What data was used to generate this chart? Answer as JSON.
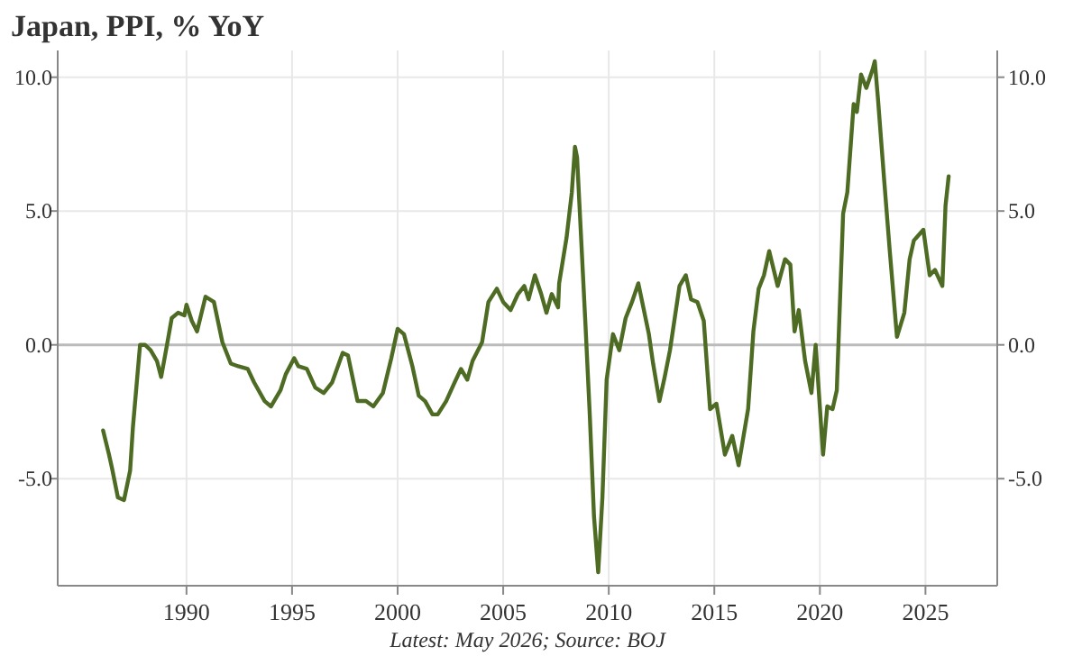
{
  "chart_data": {
    "type": "line",
    "title": "Japan, PPI, % YoY",
    "annotations": [
      "Latest: May 2026; Source: BOJ"
    ],
    "x": [
      1986.05,
      1986.33,
      1986.47,
      1986.75,
      1987.04,
      1987.33,
      1987.46,
      1987.8,
      1988.04,
      1988.3,
      1988.6,
      1988.8,
      1989.1,
      1989.3,
      1989.6,
      1989.9,
      1990.0,
      1990.25,
      1990.5,
      1990.9,
      1991.3,
      1991.7,
      1992.1,
      1992.45,
      1992.9,
      1993.2,
      1993.7,
      1994.0,
      1994.45,
      1994.7,
      1995.1,
      1995.3,
      1995.7,
      1996.1,
      1996.5,
      1996.9,
      1997.4,
      1997.65,
      1998.1,
      1998.5,
      1998.85,
      1999.3,
      1999.7,
      2000.0,
      2000.3,
      2000.7,
      2001.0,
      2001.3,
      2001.65,
      2001.9,
      2002.3,
      2002.7,
      2003.0,
      2003.3,
      2003.55,
      2004.0,
      2004.3,
      2004.7,
      2005.0,
      2005.35,
      2005.7,
      2006.0,
      2006.2,
      2006.5,
      2006.8,
      2007.05,
      2007.3,
      2007.6,
      2007.65,
      2008.0,
      2008.25,
      2008.4,
      2008.5,
      2008.9,
      2009.1,
      2009.3,
      2009.5,
      2009.7,
      2009.9,
      2010.2,
      2010.5,
      2010.8,
      2011.1,
      2011.4,
      2011.9,
      2012.1,
      2012.4,
      2012.65,
      2012.9,
      2013.35,
      2013.65,
      2013.9,
      2014.2,
      2014.5,
      2014.8,
      2015.1,
      2015.5,
      2015.85,
      2016.15,
      2016.6,
      2016.85,
      2017.1,
      2017.35,
      2017.6,
      2018.0,
      2018.35,
      2018.6,
      2018.8,
      2019.0,
      2019.3,
      2019.6,
      2019.8,
      2020.15,
      2020.35,
      2020.6,
      2020.8,
      2021.1,
      2021.3,
      2021.6,
      2021.75,
      2021.95,
      2022.2,
      2022.5,
      2022.6,
      2022.75,
      2023.05,
      2023.3,
      2023.65,
      2024.0,
      2024.25,
      2024.45,
      2024.9,
      2025.2,
      2025.45,
      2025.8,
      2025.95,
      2026.1
    ],
    "series": [
      {
        "color": "#4d6b22",
        "values": [
          -3.2,
          -4.1,
          -4.6,
          -5.7,
          -5.8,
          -4.7,
          -3.1,
          0,
          0,
          -0.2,
          -0.6,
          -1.2,
          0.1,
          1.0,
          1.2,
          1.1,
          1.5,
          0.9,
          0.5,
          1.8,
          1.6,
          0.1,
          -0.7,
          -0.8,
          -0.9,
          -1.4,
          -2.1,
          -2.3,
          -1.7,
          -1.1,
          -0.5,
          -0.8,
          -0.9,
          -1.6,
          -1.8,
          -1.4,
          -0.3,
          -0.4,
          -2.1,
          -2.1,
          -2.3,
          -1.8,
          -0.5,
          0.6,
          0.4,
          -0.8,
          -1.9,
          -2.1,
          -2.6,
          -2.6,
          -2.1,
          -1.4,
          -0.9,
          -1.3,
          -0.6,
          0.1,
          1.6,
          2.1,
          1.6,
          1.3,
          1.9,
          2.2,
          1.7,
          2.6,
          1.9,
          1.2,
          1.9,
          1.4,
          2.3,
          4.0,
          5.7,
          7.4,
          7.0,
          0.7,
          -2.6,
          -6.4,
          -8.5,
          -5.7,
          -1.3,
          0.4,
          -0.2,
          1.0,
          1.6,
          2.3,
          0.4,
          -0.7,
          -2.1,
          -1.2,
          -0.2,
          2.2,
          2.6,
          1.7,
          1.6,
          0.9,
          -2.4,
          -2.2,
          -4.1,
          -3.4,
          -4.5,
          -2.4,
          0.5,
          2.1,
          2.6,
          3.5,
          2.2,
          3.2,
          3.0,
          0.5,
          1.3,
          -0.6,
          -1.8,
          0,
          -4.1,
          -2.3,
          -2.4,
          -1.7,
          4.9,
          5.7,
          9.0,
          8.7,
          10.1,
          9.6,
          10.3,
          10.6,
          9.2,
          6.1,
          3.6,
          0.3,
          1.2,
          3.2,
          3.9,
          4.3,
          2.6,
          2.8,
          2.2,
          5.2,
          6.3
        ]
      }
    ],
    "xlim": [
      1983.9,
      2028.4
    ],
    "xticks": [
      1990,
      1995,
      2000,
      2005,
      2010,
      2015,
      2020,
      2025
    ],
    "ylim": [
      -9,
      11
    ],
    "yticks": [
      {
        "value": -5,
        "label": "-5.0"
      },
      {
        "value": 0,
        "label": "0.0"
      },
      {
        "value": 5,
        "label": "5.0"
      },
      {
        "value": 10,
        "label": "10.0"
      }
    ],
    "y2lim": [
      -9,
      11
    ],
    "y2ticks": [
      {
        "value": -5,
        "label": "-5.0"
      },
      {
        "value": 0,
        "label": "0.0"
      },
      {
        "value": 5,
        "label": "5.0"
      },
      {
        "value": 10,
        "label": "10.0"
      }
    ],
    "ref_lines": [
      {
        "axis": "y",
        "value": 0,
        "color": "#bbbbbb"
      }
    ],
    "grid": true,
    "marker": "none",
    "line_style": "solid"
  }
}
